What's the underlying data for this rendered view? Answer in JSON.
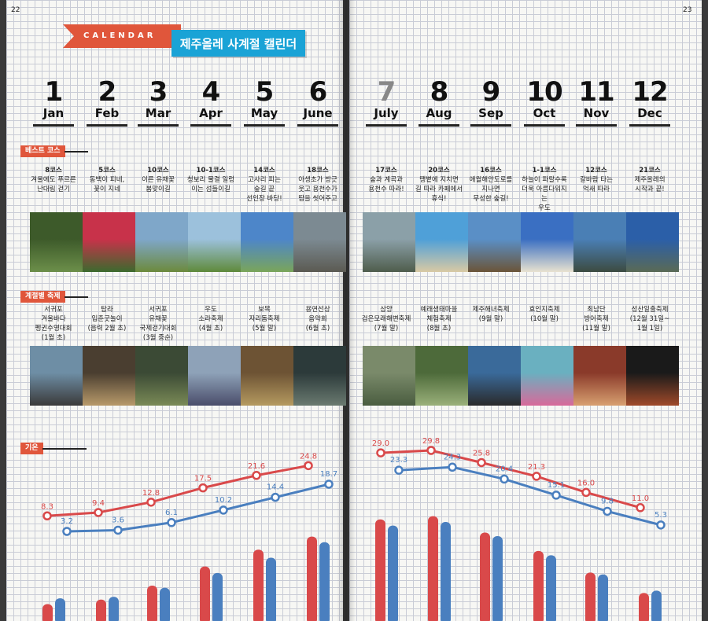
{
  "page_numbers": {
    "left": "22",
    "right": "23"
  },
  "header": {
    "calendar_label": "CALENDAR",
    "title": "제주올레 사계절 캘린더"
  },
  "months": [
    {
      "num": "1",
      "name": "Jan"
    },
    {
      "num": "2",
      "name": "Feb"
    },
    {
      "num": "3",
      "name": "Mar"
    },
    {
      "num": "4",
      "name": "Apr"
    },
    {
      "num": "5",
      "name": "May"
    },
    {
      "num": "6",
      "name": "June"
    },
    {
      "num": "7",
      "name": "July"
    },
    {
      "num": "8",
      "name": "Aug"
    },
    {
      "num": "9",
      "name": "Sep"
    },
    {
      "num": "10",
      "name": "Oct"
    },
    {
      "num": "11",
      "name": "Nov"
    },
    {
      "num": "12",
      "name": "Dec"
    }
  ],
  "sections": {
    "best_course": "베스트 코스",
    "festival": "계절별 축제",
    "temperature": "기온"
  },
  "courses": [
    {
      "course": "8코스",
      "line1": "겨울에도 푸르른",
      "line2": "난대림 걷기",
      "line3": ""
    },
    {
      "course": "5코스",
      "line1": "동백이 피네,",
      "line2": "꽃이 지네",
      "line3": ""
    },
    {
      "course": "10코스",
      "line1": "이른 유채꽃",
      "line2": "봄맞이길",
      "line3": ""
    },
    {
      "course": "10-1코스",
      "line1": "청보리 물결 일렁",
      "line2": "이는 섬들이길",
      "line3": ""
    },
    {
      "course": "14코스",
      "line1": "고사리 피는",
      "line2": "숲길 끝",
      "line3": "선인장 바당!"
    },
    {
      "course": "18코스",
      "line1": "아생초가 방긋",
      "line2": "웃고 용천수가",
      "line3": "땀을 씻어주고"
    },
    {
      "course": "17코스",
      "line1": "숲과 계곡과",
      "line2": "용천수 따라!",
      "line3": ""
    },
    {
      "course": "20코스",
      "line1": "땡볕에 지치면",
      "line2": "길 따라 카페에서",
      "line3": "휴식!"
    },
    {
      "course": "16코스",
      "line1": "애월해안도로를",
      "line2": "지나면",
      "line3": "무성한 숲길!"
    },
    {
      "course": "1-1코스",
      "line1": "하늘이 파랄수록",
      "line2": "더욱 아름다워지는",
      "line3": "우도"
    },
    {
      "course": "12코스",
      "line1": "갈바람 타는",
      "line2": "억새 따라",
      "line3": ""
    },
    {
      "course": "21코스",
      "line1": "제주올레의",
      "line2": "시작과 끝!",
      "line3": ""
    }
  ],
  "festivals": [
    {
      "line1": "서귀포",
      "line2": "겨울바다",
      "line3": "펭귄수영대회",
      "line4": "(1월 초)"
    },
    {
      "line1": "탐라",
      "line2": "입춘굿놀이",
      "line3": "(음력 2월 초)",
      "line4": ""
    },
    {
      "line1": "서귀포",
      "line2": "유채꽃",
      "line3": "국제걷기대회",
      "line4": "(3월 중순)"
    },
    {
      "line1": "우도",
      "line2": "소라축제",
      "line3": "(4월 초)",
      "line4": ""
    },
    {
      "line1": "보목",
      "line2": "자리돔축제",
      "line3": "(5월 말)",
      "line4": ""
    },
    {
      "line1": "용연선상",
      "line2": "음악회",
      "line3": "(6월 초)",
      "line4": ""
    },
    {
      "line1": "삼양",
      "line2": "검은모래해변축제",
      "line3": "(7월 말)",
      "line4": ""
    },
    {
      "line1": "예래생태마을",
      "line2": "체험축제",
      "line3": "(8월 초)",
      "line4": ""
    },
    {
      "line1": "제주해녀축제",
      "line2": "(9월 말)",
      "line3": "",
      "line4": ""
    },
    {
      "line1": "효인지축제",
      "line2": "(10월 말)",
      "line3": "",
      "line4": ""
    },
    {
      "line1": "최남단",
      "line2": "방어축제",
      "line3": "(11월 말)",
      "line4": ""
    },
    {
      "line1": "성산일출축제",
      "line2": "(12월 31일~",
      "line3": "1월 1일)",
      "line4": ""
    }
  ],
  "photos": {
    "course_colors": [
      [
        "#3d5a2a",
        "#6c8f4a"
      ],
      [
        "#c8324a",
        "#3b6a2e"
      ],
      [
        "#7fa7c9",
        "#6c8a3c"
      ],
      [
        "#9cc1dc",
        "#5f8a3a"
      ],
      [
        "#4d86c9",
        "#7aa55a"
      ],
      [
        "#7c8a92",
        "#5b5a52"
      ],
      [
        "#8ba0a8",
        "#4f5d4c"
      ],
      [
        "#4fa0d8",
        "#d9c9a4"
      ],
      [
        "#5a8fc6",
        "#6b5538"
      ],
      [
        "#3a6fc2",
        "#e8e2d0"
      ],
      [
        "#4a7fb5",
        "#3c4b40"
      ],
      [
        "#2b5fa8",
        "#5a6a55"
      ]
    ],
    "festival_colors": [
      [
        "#6e8ea5",
        "#3b3a3a"
      ],
      [
        "#4a3e30",
        "#b89a6a"
      ],
      [
        "#3b4a35",
        "#7a8a56"
      ],
      [
        "#8ea2b8",
        "#4a4d6a"
      ],
      [
        "#6d5334",
        "#b59a60"
      ],
      [
        "#2c3a3a",
        "#6a7a70"
      ],
      [
        "#7a8a6a",
        "#4a5d40"
      ],
      [
        "#4d6a3a",
        "#9ab07a"
      ],
      [
        "#3a6a9a",
        "#2a2a2a"
      ],
      [
        "#6ab0c0",
        "#d86a9a"
      ],
      [
        "#8a3a2a",
        "#d8a070"
      ],
      [
        "#1a1a1a",
        "#a04a2a"
      ]
    ]
  },
  "chart_data": {
    "type": "line+bar",
    "categories": [
      "Jan",
      "Feb",
      "Mar",
      "Apr",
      "May",
      "June",
      "July",
      "Aug",
      "Sep",
      "Oct",
      "Nov",
      "Dec"
    ],
    "series": [
      {
        "kind": "line",
        "color": "#d9494a",
        "values": [
          8.3,
          9.4,
          12.8,
          17.5,
          21.6,
          24.8,
          29.0,
          29.8,
          25.8,
          21.3,
          16.0,
          11.0
        ]
      },
      {
        "kind": "line",
        "color": "#4a7fbf",
        "values": [
          3.2,
          3.6,
          6.1,
          10.2,
          14.4,
          18.7,
          23.3,
          24.3,
          20.4,
          15.1,
          9.8,
          5.3
        ]
      },
      {
        "kind": "bar",
        "color": "#d9494a",
        "values": [
          8.3,
          9.4,
          12.8,
          17.5,
          21.6,
          24.8,
          29.0,
          29.8,
          25.8,
          21.3,
          16.0,
          11.0
        ]
      },
      {
        "kind": "bar",
        "color": "#4a7fbf",
        "values": [
          3.2,
          3.6,
          6.1,
          10.2,
          14.4,
          18.7,
          23.3,
          24.3,
          20.4,
          15.1,
          9.8,
          5.3
        ]
      }
    ],
    "labels_high": [
      "8.3",
      "9.4",
      "12.8",
      "17.5",
      "21.6",
      "24.8",
      "29.0",
      "29.8",
      "25.8",
      "21.3",
      "16.0",
      "11.0"
    ],
    "labels_low": [
      "3.2",
      "3.6",
      "6.1",
      "10.2",
      "14.4",
      "18.7",
      "23.3",
      "24.3",
      "20.4",
      "15.1",
      "9.8",
      "5.3"
    ]
  }
}
